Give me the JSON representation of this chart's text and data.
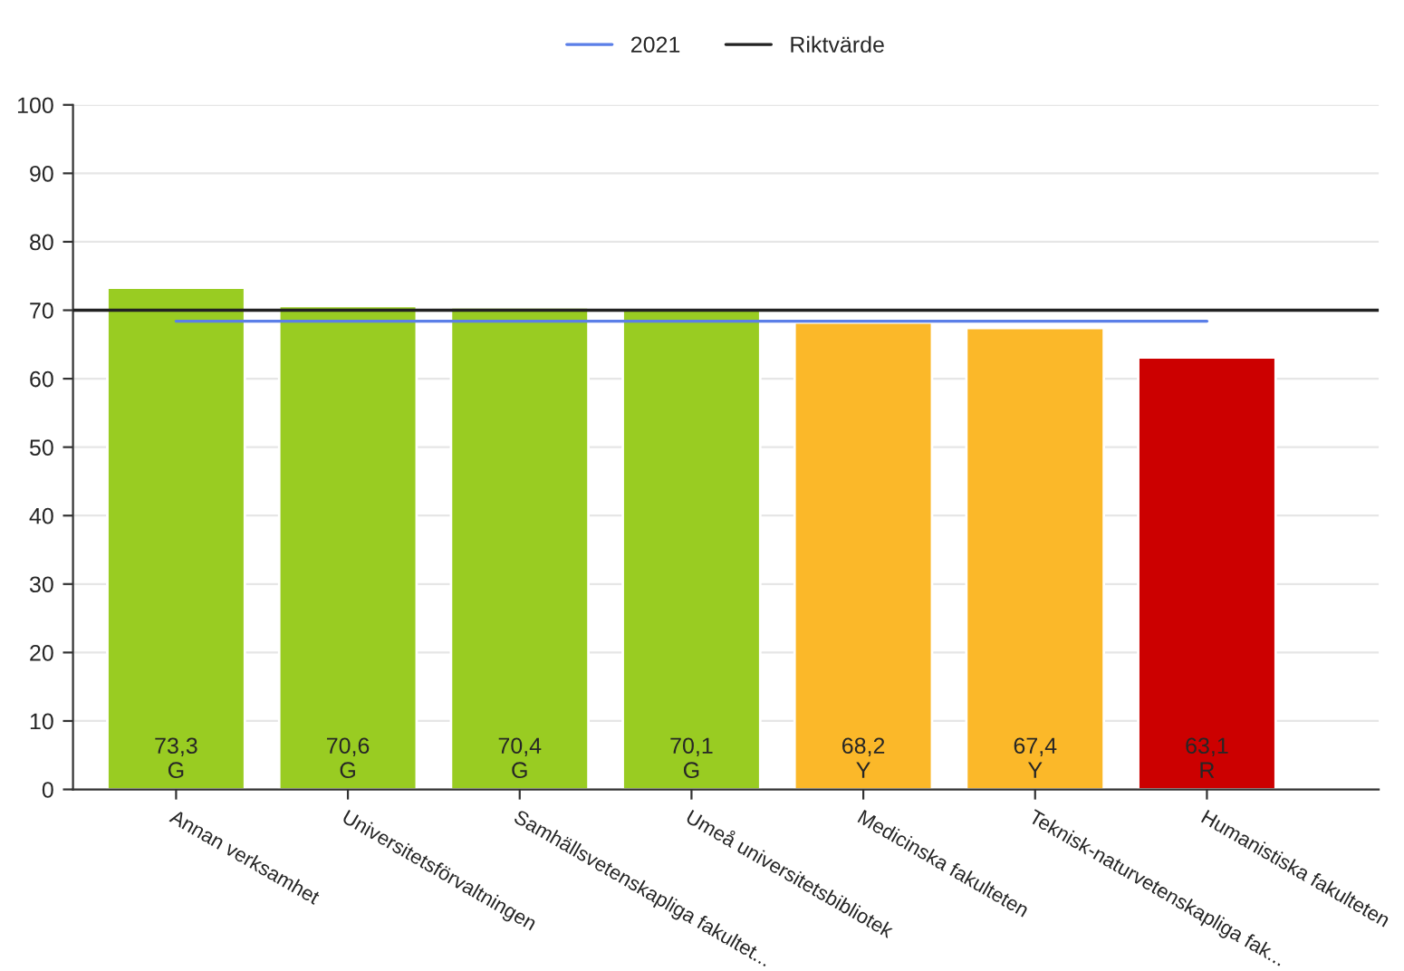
{
  "chart_data": {
    "type": "bar",
    "categories": [
      "Annan verksamhet",
      "Universitetsförvaltningen",
      "Samhällsvetenskapliga fakultet...",
      "Umeå universitetsbibliotek",
      "Medicinska fakulteten",
      "Teknisk-naturvetenskapliga fak...",
      "Humanistiska fakulteten"
    ],
    "values": [
      73.3,
      70.6,
      70.4,
      70.1,
      68.2,
      67.4,
      63.1
    ],
    "colors": [
      "#99cc22",
      "#99cc22",
      "#99cc22",
      "#99cc22",
      "#fbb829",
      "#fbb829",
      "#cc0000"
    ],
    "value_labels": [
      "73,3\nG",
      "70,6\nG",
      "70,4\nG",
      "70,1\nG",
      "68,2\nY",
      "67,4\nY",
      "63,1\nR"
    ],
    "ylim": [
      0,
      100
    ],
    "yticks": [
      0,
      10,
      20,
      30,
      40,
      50,
      60,
      70,
      80,
      90,
      100
    ],
    "series": [
      {
        "name": "2021",
        "type": "line",
        "color": "#5b7fe8",
        "values": [
          68.4,
          68.4,
          68.4,
          68.4,
          68.4,
          68.4,
          68.4
        ]
      }
    ],
    "ref_lines": [
      {
        "axis": "y",
        "value": 70,
        "label": "Riktvärde",
        "color": "#222222"
      }
    ],
    "grid": "y",
    "legend": "top"
  }
}
